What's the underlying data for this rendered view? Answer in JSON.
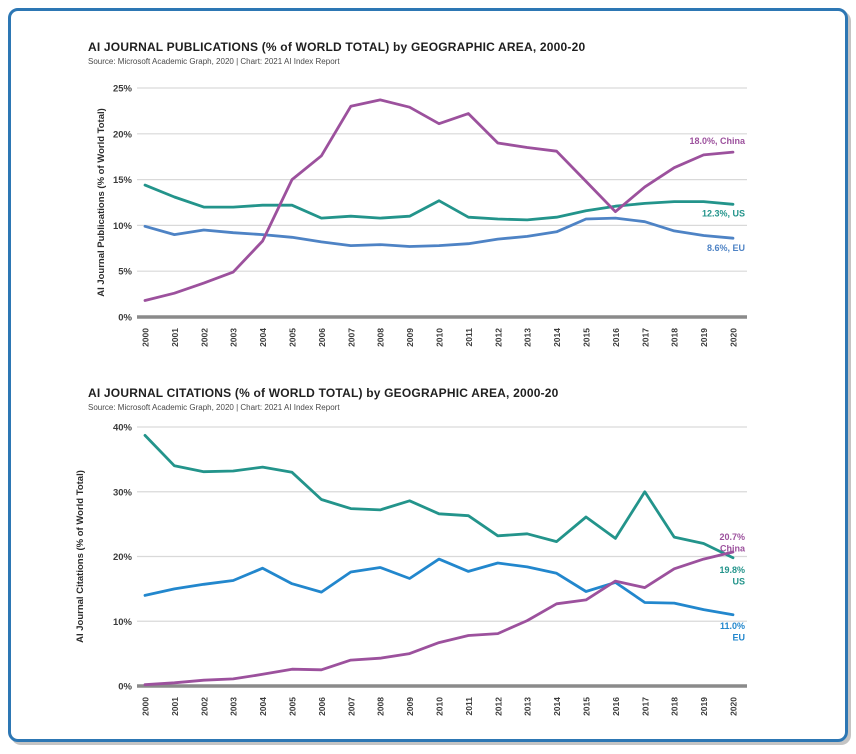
{
  "page": {
    "background": "#ffffff",
    "frame_border_color": "#2d77b4"
  },
  "chart_data": [
    {
      "type": "line",
      "title": "AI JOURNAL PUBLICATIONS (% of WORLD TOTAL) by GEOGRAPHIC AREA, 2000-20",
      "source": "Source: Microsoft Academic Graph, 2020 | Chart: 2021 AI Index Report",
      "ylabel": "AI Journal Publications (% of World Total)",
      "xlabel": "",
      "x_labels": [
        "2000",
        "2001",
        "2002",
        "2003",
        "2004",
        "2005",
        "2006",
        "2007",
        "2008",
        "2009",
        "2010",
        "2011",
        "2012",
        "2013",
        "2014",
        "2015",
        "2016",
        "2017",
        "2018",
        "2019",
        "2020"
      ],
      "ylim": [
        0,
        25
      ],
      "yticks": [
        0,
        5,
        10,
        15,
        20,
        25
      ],
      "ytick_labels": [
        "0%",
        "5%",
        "10%",
        "15%",
        "20%",
        "25%"
      ],
      "grid": true,
      "legend_position": "line-end-labels-right",
      "series": [
        {
          "name": "China",
          "color": "#9c519d",
          "end_label_lines": [
            "18.0%, China"
          ],
          "end_label_dy": -8,
          "values": [
            1.8,
            2.6,
            3.7,
            4.9,
            8.3,
            15.0,
            17.6,
            23.0,
            23.7,
            22.9,
            21.1,
            22.2,
            19.0,
            18.5,
            18.1,
            14.8,
            11.5,
            14.2,
            16.3,
            17.7,
            18.0
          ]
        },
        {
          "name": "US",
          "color": "#23948b",
          "end_label_lines": [
            "12.3%, US"
          ],
          "end_label_dy": 12,
          "values": [
            14.4,
            13.1,
            12.0,
            12.0,
            12.2,
            12.2,
            10.8,
            11.0,
            10.8,
            11.0,
            12.7,
            10.9,
            10.7,
            10.6,
            10.9,
            11.6,
            12.1,
            12.4,
            12.6,
            12.6,
            12.3
          ]
        },
        {
          "name": "EU",
          "color": "#4e83c5",
          "end_label_lines": [
            "8.6%, EU"
          ],
          "end_label_dy": 13,
          "values": [
            9.9,
            9.0,
            9.5,
            9.2,
            9.0,
            8.7,
            8.2,
            7.8,
            7.9,
            7.7,
            7.8,
            8.0,
            8.5,
            8.8,
            9.3,
            10.7,
            10.8,
            10.4,
            9.4,
            8.9,
            8.6
          ]
        }
      ]
    },
    {
      "type": "line",
      "title": "AI JOURNAL CITATIONS (% of WORLD TOTAL) by GEOGRAPHIC AREA, 2000-20",
      "source": "Source: Microsoft Academic Graph, 2020 | Chart: 2021 AI Index Report",
      "ylabel": "AI Journal Citations (% of World Total)",
      "xlabel": "",
      "x_labels": [
        "2000",
        "2001",
        "2002",
        "2003",
        "2004",
        "2005",
        "2006",
        "2007",
        "2008",
        "2009",
        "2010",
        "2011",
        "2012",
        "2013",
        "2014",
        "2015",
        "2016",
        "2017",
        "2018",
        "2019",
        "2020"
      ],
      "ylim": [
        0,
        40
      ],
      "yticks": [
        0,
        10,
        20,
        30,
        40
      ],
      "ytick_labels": [
        "0%",
        "10%",
        "20%",
        "30%",
        "40%"
      ],
      "grid": true,
      "legend_position": "line-end-labels-right",
      "series": [
        {
          "name": "China",
          "color": "#9c519d",
          "end_label_lines": [
            "20.7%",
            "China"
          ],
          "end_label_dy": -12,
          "values": [
            0.2,
            0.5,
            0.9,
            1.1,
            1.8,
            2.6,
            2.5,
            4.0,
            4.3,
            5.0,
            6.7,
            7.8,
            8.1,
            10.1,
            12.7,
            13.3,
            16.2,
            15.2,
            18.1,
            19.6,
            20.7
          ]
        },
        {
          "name": "US",
          "color": "#23948b",
          "end_label_lines": [
            "19.8%",
            "US"
          ],
          "end_label_dy": 15,
          "values": [
            38.7,
            34.0,
            33.1,
            33.2,
            33.8,
            33.0,
            28.8,
            27.4,
            27.2,
            28.6,
            26.6,
            26.3,
            23.2,
            23.5,
            22.3,
            26.1,
            22.8,
            30.0,
            23.0,
            22.0,
            19.8
          ]
        },
        {
          "name": "EU",
          "color": "#2287cd",
          "end_label_lines": [
            "11.0%",
            "EU"
          ],
          "end_label_dy": 14,
          "values": [
            14.0,
            15.0,
            15.7,
            16.3,
            18.2,
            15.8,
            14.5,
            17.6,
            18.3,
            16.6,
            19.6,
            17.7,
            19.0,
            18.4,
            17.4,
            14.6,
            16.0,
            12.9,
            12.8,
            11.8,
            11.0
          ]
        }
      ]
    }
  ]
}
